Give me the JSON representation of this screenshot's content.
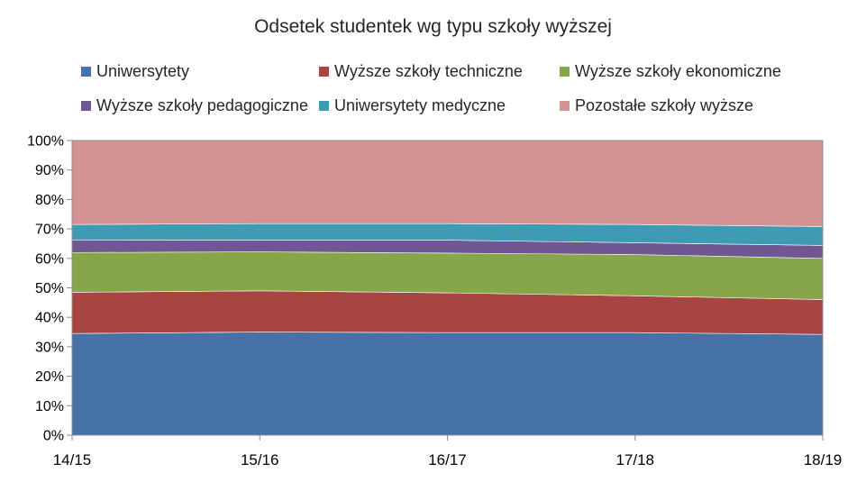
{
  "chart_data": {
    "type": "area",
    "stacked": "percent",
    "title": "Odsetek studentek wg  typu szkoły wyższej",
    "xlabel": "",
    "ylabel": "",
    "ylim": [
      0,
      100
    ],
    "yticks": [
      "0%",
      "10%",
      "20%",
      "30%",
      "40%",
      "50%",
      "60%",
      "70%",
      "80%",
      "90%",
      "100%"
    ],
    "categories": [
      "14/15",
      "15/16",
      "16/17",
      "17/18",
      "18/19"
    ],
    "legend_position": "top",
    "grid": false,
    "series": [
      {
        "name": "Uniwersytety",
        "color": "#4672A8",
        "values": [
          34.5,
          35.0,
          34.8,
          34.8,
          34.2
        ]
      },
      {
        "name": "Wyższe szkoły techniczne",
        "color": "#A84442",
        "values": [
          14.0,
          14.0,
          13.5,
          12.5,
          11.8
        ]
      },
      {
        "name": "Wyższe szkoły ekonomiczne",
        "color": "#87A64A",
        "values": [
          13.5,
          13.2,
          13.5,
          14.0,
          14.0
        ]
      },
      {
        "name": "Wyższe szkoły pedagogiczne",
        "color": "#6F5792",
        "values": [
          4.3,
          4.0,
          4.4,
          4.0,
          4.4
        ]
      },
      {
        "name": "Uniwersytety medyczne",
        "color": "#3F9BB4",
        "values": [
          5.2,
          5.6,
          5.6,
          6.2,
          6.4
        ]
      },
      {
        "name": "Pozostałe szkoły wyższe",
        "color": "#D39392",
        "values": [
          28.5,
          28.2,
          28.2,
          28.5,
          29.2
        ]
      }
    ]
  }
}
